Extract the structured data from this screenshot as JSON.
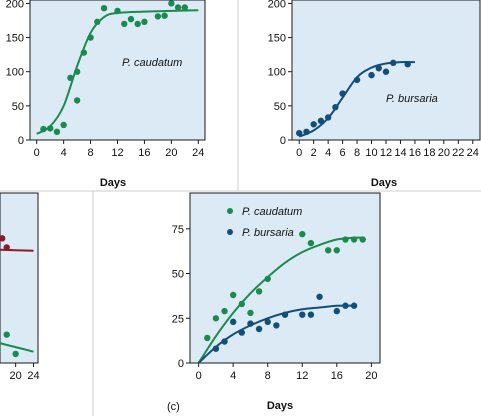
{
  "colors": {
    "caudatum": "#1a8a4e",
    "bursaria": "#124f78",
    "maroon": "#8b1a2b",
    "bg": "#dbeaf4"
  },
  "chart_data": [
    {
      "id": "panel-a",
      "type": "scatter",
      "xlabel": "Days",
      "xlim": [
        -1,
        25
      ],
      "ylim": [
        0,
        205
      ],
      "xticks": [
        0,
        4,
        8,
        12,
        16,
        20,
        24
      ],
      "yticks": [
        0,
        50,
        100,
        150,
        200
      ],
      "annotation": "P. caudatum",
      "series": [
        {
          "color": "caudatum",
          "points": [
            [
              1,
              16
            ],
            [
              2,
              17
            ],
            [
              3,
              12
            ],
            [
              4,
              22
            ],
            [
              5,
              91
            ],
            [
              6,
              58
            ],
            [
              6,
              100
            ],
            [
              7,
              128
            ],
            [
              8,
              150
            ],
            [
              9,
              173
            ],
            [
              10,
              193
            ],
            [
              12,
              189
            ],
            [
              13,
              170
            ],
            [
              14,
              177
            ],
            [
              15,
              170
            ],
            [
              16,
              173
            ],
            [
              18,
              181
            ],
            [
              19,
              182
            ],
            [
              20,
              200
            ],
            [
              21,
              194
            ],
            [
              22,
              194
            ]
          ],
          "curve": [
            [
              0,
              9
            ],
            [
              2,
              20
            ],
            [
              4,
              50
            ],
            [
              6,
              108
            ],
            [
              8,
              157
            ],
            [
              10,
              180
            ],
            [
              12,
              186
            ],
            [
              16,
              188
            ],
            [
              20,
              189
            ],
            [
              24,
              190
            ]
          ]
        }
      ]
    },
    {
      "id": "panel-b",
      "type": "scatter",
      "xlabel": "Days",
      "xlim": [
        -1,
        25
      ],
      "ylim": [
        0,
        205
      ],
      "xticks": [
        0,
        2,
        4,
        6,
        8,
        10,
        12,
        14,
        16,
        18,
        20,
        22,
        24
      ],
      "yticks": [
        0,
        50,
        100,
        150,
        200
      ],
      "annotation": "P. bursaria",
      "series": [
        {
          "color": "bursaria",
          "points": [
            [
              0,
              10
            ],
            [
              1,
              12
            ],
            [
              2,
              23
            ],
            [
              3,
              28
            ],
            [
              4,
              33
            ],
            [
              5,
              48
            ],
            [
              6,
              68
            ],
            [
              8,
              88
            ],
            [
              10,
              95
            ],
            [
              11,
              105
            ],
            [
              12,
              100
            ],
            [
              13,
              113
            ],
            [
              15,
              111
            ]
          ],
          "curve": [
            [
              0,
              5
            ],
            [
              2,
              14
            ],
            [
              4,
              32
            ],
            [
              6,
              62
            ],
            [
              8,
              92
            ],
            [
              10,
              106
            ],
            [
              12,
              112
            ],
            [
              14,
              114
            ],
            [
              16,
              114
            ]
          ]
        }
      ]
    },
    {
      "id": "panel-left-partial",
      "type": "scatter",
      "xticks": [
        20,
        24
      ],
      "series": [
        {
          "color": "maroon",
          "points": [
            [
              17,
              110
            ],
            [
              18,
              102
            ]
          ],
          "curve": [
            [
              16,
              100
            ],
            [
              24,
              99
            ]
          ]
        },
        {
          "color": "caudatum",
          "points": [
            [
              16,
              12
            ],
            [
              18,
              25
            ],
            [
              20,
              8
            ]
          ],
          "curve": [
            [
              16,
              18
            ],
            [
              20,
              14
            ],
            [
              24,
              10
            ]
          ]
        }
      ]
    },
    {
      "id": "panel-c",
      "type": "scatter",
      "label": "(c)",
      "xlabel": "Days",
      "xlim": [
        -1,
        21
      ],
      "ylim": [
        0,
        95
      ],
      "xticks": [
        0,
        4,
        8,
        12,
        16,
        20
      ],
      "yticks": [
        0,
        25,
        50,
        75
      ],
      "xtick_labels": [
        "0",
        "4",
        "8",
        "12",
        "16",
        "20"
      ],
      "legend": [
        "P. caudatum",
        "P. bursaria"
      ],
      "series": [
        {
          "name": "P. caudatum",
          "color": "caudatum",
          "points": [
            [
              1,
              14
            ],
            [
              2,
              25
            ],
            [
              3,
              29
            ],
            [
              4,
              38
            ],
            [
              5,
              33
            ],
            [
              6,
              28
            ],
            [
              7,
              40
            ],
            [
              8,
              47
            ],
            [
              12,
              72
            ],
            [
              13,
              67
            ],
            [
              15,
              63
            ],
            [
              16,
              63
            ],
            [
              17,
              69
            ],
            [
              18,
              69
            ],
            [
              19,
              69
            ]
          ],
          "curve": [
            [
              0,
              0
            ],
            [
              2,
              15
            ],
            [
              4,
              28
            ],
            [
              6,
              39
            ],
            [
              8,
              48
            ],
            [
              10,
              56
            ],
            [
              12,
              62
            ],
            [
              14,
              66
            ],
            [
              16,
              69
            ],
            [
              18,
              70
            ],
            [
              19,
              70
            ]
          ]
        },
        {
          "name": "P. bursaria",
          "color": "bursaria",
          "points": [
            [
              2,
              8
            ],
            [
              3,
              12
            ],
            [
              4,
              23
            ],
            [
              5,
              17
            ],
            [
              6,
              22
            ],
            [
              7,
              19
            ],
            [
              8,
              23
            ],
            [
              9,
              21
            ],
            [
              10,
              27
            ],
            [
              12,
              27
            ],
            [
              13,
              27
            ],
            [
              14,
              37
            ],
            [
              16,
              29
            ],
            [
              17,
              32
            ],
            [
              18,
              32
            ]
          ],
          "curve": [
            [
              0,
              0
            ],
            [
              2,
              9
            ],
            [
              4,
              16
            ],
            [
              6,
              21
            ],
            [
              8,
              25
            ],
            [
              10,
              28
            ],
            [
              12,
              30
            ],
            [
              14,
              31
            ],
            [
              16,
              32
            ],
            [
              18,
              32
            ]
          ]
        }
      ]
    }
  ]
}
